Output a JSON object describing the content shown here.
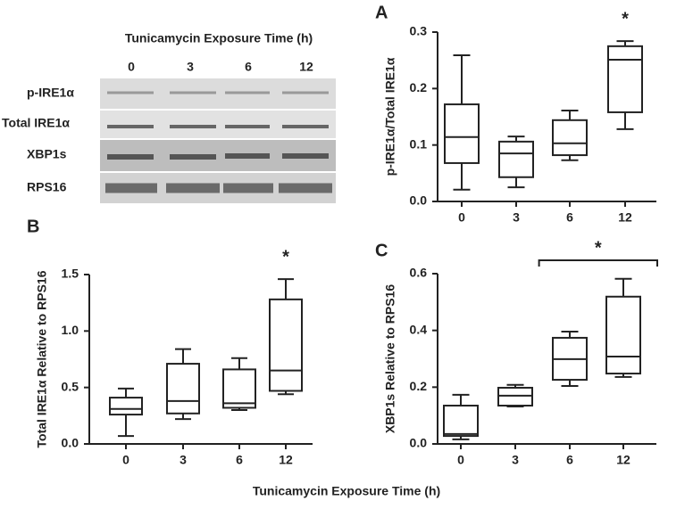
{
  "blot": {
    "title": "Tunicamycin Exposure Time (h)",
    "lanes": [
      "0",
      "3",
      "6",
      "12"
    ],
    "rows": [
      "p-IRE1α",
      "Total IRE1α",
      "XBP1s",
      "RPS16"
    ]
  },
  "xlabel": "Tunicamycin Exposure Time (h)",
  "chart_data": [
    {
      "type": "box",
      "label": "A",
      "ylabel": "p-IRE1α/Total IRE1α",
      "color": "#222222",
      "categories": [
        "0",
        "3",
        "6",
        "12"
      ],
      "min": [
        0.021,
        0.025,
        0.073,
        0.128
      ],
      "q1": [
        0.068,
        0.043,
        0.082,
        0.158
      ],
      "median": [
        0.114,
        0.085,
        0.103,
        0.251
      ],
      "q3": [
        0.172,
        0.106,
        0.144,
        0.275
      ],
      "max": [
        0.259,
        0.115,
        0.161,
        0.284
      ],
      "ylim": [
        0,
        0.3
      ],
      "yticks": [
        {
          "value": 0,
          "label": "0.0"
        },
        0.1,
        0.2,
        0.3
      ],
      "annotations": [
        {
          "text": "*",
          "x": "12"
        }
      ]
    },
    {
      "type": "box",
      "label": "B",
      "ylabel": "Total IRE1α Relative to RPS16",
      "color": "#222222",
      "categories": [
        "0",
        "3",
        "6",
        "12"
      ],
      "min": [
        0.07,
        0.22,
        0.3,
        0.44
      ],
      "q1": [
        0.26,
        0.27,
        0.32,
        0.47
      ],
      "median": [
        0.31,
        0.38,
        0.36,
        0.65
      ],
      "q3": [
        0.41,
        0.71,
        0.66,
        1.28
      ],
      "max": [
        0.49,
        0.84,
        0.76,
        1.46
      ],
      "ylim": [
        0,
        1.5
      ],
      "yticks": [
        {
          "value": 0,
          "label": "0.0"
        },
        0.5,
        {
          "value": 1,
          "label": "1.0"
        },
        1.5
      ],
      "annotations": [
        {
          "text": "*",
          "x": "12"
        }
      ]
    },
    {
      "type": "box",
      "label": "C",
      "ylabel": "XBP1s Relative to RPS16",
      "color": "#222222",
      "categories": [
        "0",
        "3",
        "6",
        "12"
      ],
      "min": [
        0.016,
        0.132,
        0.204,
        0.236
      ],
      "q1": [
        0.028,
        0.135,
        0.226,
        0.248
      ],
      "median": [
        0.035,
        0.17,
        0.299,
        0.308
      ],
      "q3": [
        0.135,
        0.198,
        0.374,
        0.519
      ],
      "max": [
        0.173,
        0.208,
        0.396,
        0.582
      ],
      "ylim": [
        0,
        0.6
      ],
      "yticks": [
        {
          "value": 0,
          "label": "0.0"
        },
        0.2,
        0.4,
        0.6
      ],
      "annotations": [
        {
          "text": "*",
          "from": "3",
          "to": "12"
        }
      ]
    }
  ]
}
